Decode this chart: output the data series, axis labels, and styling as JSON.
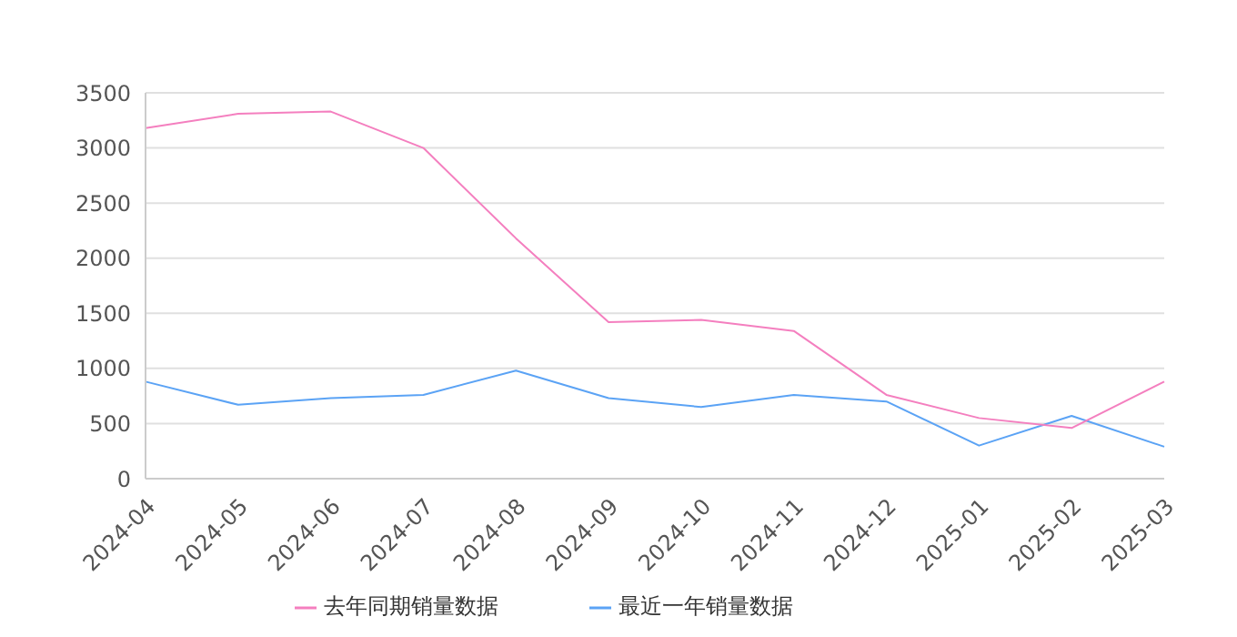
{
  "chart_data": {
    "type": "line",
    "categories": [
      "2024-04",
      "2024-05",
      "2024-06",
      "2024-07",
      "2024-08",
      "2024-09",
      "2024-10",
      "2024-11",
      "2024-12",
      "2025-01",
      "2025-02",
      "2025-03"
    ],
    "series": [
      {
        "name": "最近一年销量数据",
        "color": "#5ba3f5",
        "values": [
          880,
          670,
          730,
          760,
          980,
          730,
          650,
          760,
          700,
          300,
          570,
          290
        ]
      },
      {
        "name": "去年同期销量数据",
        "color": "#f47fbf",
        "values": [
          3180,
          3310,
          3330,
          3000,
          2180,
          1420,
          1440,
          1340,
          760,
          550,
          460,
          880
        ]
      }
    ],
    "ylim": [
      0,
      3500
    ],
    "yticks": [
      0,
      500,
      1000,
      1500,
      2000,
      2500,
      3000,
      3500
    ],
    "grid": "y",
    "legend": "bottom",
    "marker": "none",
    "line_style": "solid"
  }
}
